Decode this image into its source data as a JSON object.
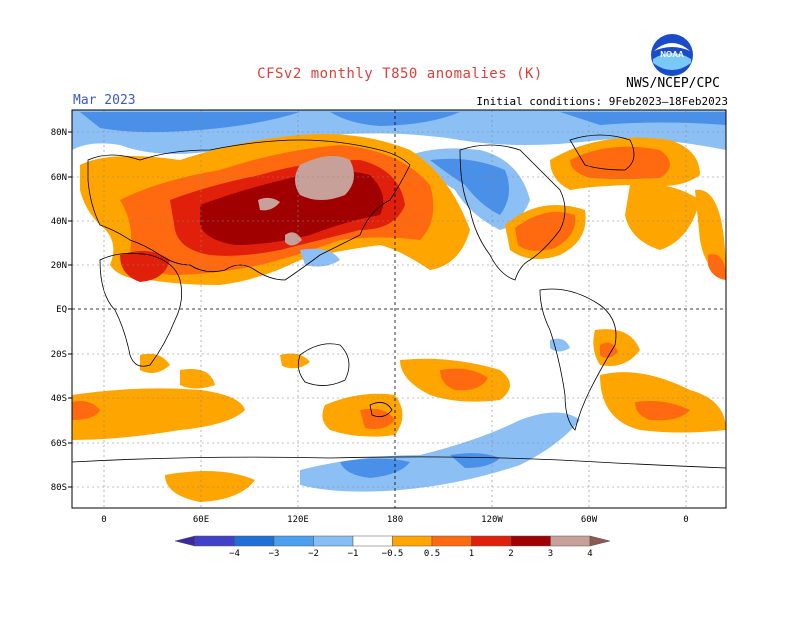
{
  "title": "CFSv2 monthly T850 anomalies (K)",
  "org": "NWS/NCEP/CPC",
  "period": "Mar 2023",
  "initial_conditions": "Initial conditions: 9Feb2023–18Feb2023",
  "logo_text": "NOAA",
  "lat_labels": [
    "80N",
    "60N",
    "40N",
    "20N",
    "EQ",
    "20S",
    "40S",
    "60S",
    "80S"
  ],
  "lon_labels": [
    "0",
    "60E",
    "120E",
    "180",
    "120W",
    "60W",
    "0"
  ],
  "colorbar": {
    "labels": [
      "−4",
      "−3",
      "−2",
      "−1",
      "−0.5",
      "0.5",
      "1",
      "2",
      "3",
      "4"
    ],
    "colors": [
      "#3a2a9e",
      "#4040c8",
      "#1f6fd6",
      "#4aa0ee",
      "#86bff5",
      "#ffffff",
      "#ffa500",
      "#ff6a10",
      "#e0200a",
      "#a00000",
      "#c8a09a",
      "#8a5a50"
    ]
  },
  "anomaly_colors": {
    "cold_light": "#8cc0f5",
    "cold_mid": "#4a90e8",
    "warm_05": "#ffa500",
    "warm_1": "#ff6a10",
    "warm_2": "#e0200a",
    "warm_3": "#a00000",
    "warm_4": "#c8a09a"
  }
}
